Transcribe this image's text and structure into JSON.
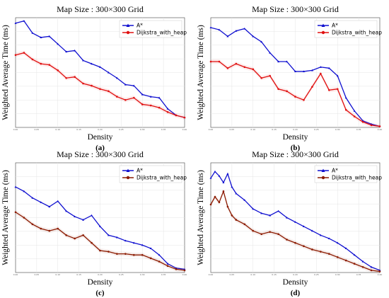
{
  "chart_data": [
    {
      "type": "line",
      "title": "Map Size : 300×300 Grid",
      "xlabel": "Density",
      "ylabel": "Weighted Average Time (ms)",
      "panel_label": "(a)",
      "xlim": [
        0,
        0.4
      ],
      "ylim": [
        0,
        1
      ],
      "grid": true,
      "legend_position": "top-right",
      "x_ticks": [
        "0.00",
        "0.05",
        "0.10",
        "0.15",
        "0.20",
        "0.25",
        "0.30",
        "0.35",
        "0.40"
      ],
      "y_ticks": [],
      "x": [
        0.0,
        0.02,
        0.04,
        0.06,
        0.08,
        0.1,
        0.12,
        0.14,
        0.16,
        0.18,
        0.2,
        0.22,
        0.24,
        0.26,
        0.28,
        0.3,
        0.32,
        0.34,
        0.36,
        0.38,
        0.4
      ],
      "series": [
        {
          "name": "A*",
          "color": "#1010d0",
          "marker": "triangle",
          "values": [
            0.95,
            0.97,
            0.86,
            0.82,
            0.83,
            0.76,
            0.69,
            0.7,
            0.61,
            0.58,
            0.55,
            0.5,
            0.45,
            0.39,
            0.38,
            0.3,
            0.28,
            0.27,
            0.17,
            0.11,
            0.09
          ]
        },
        {
          "name": "Dijkstra_with_heap",
          "color": "#e01010",
          "marker": "circle",
          "values": [
            0.66,
            0.68,
            0.62,
            0.58,
            0.57,
            0.52,
            0.45,
            0.46,
            0.4,
            0.38,
            0.35,
            0.33,
            0.28,
            0.25,
            0.27,
            0.21,
            0.2,
            0.18,
            0.14,
            0.11,
            0.09
          ]
        }
      ]
    },
    {
      "type": "line",
      "title": "Map Size : 300×300 Grid",
      "xlabel": "Density",
      "ylabel": "Weighted Average Time (ms)",
      "panel_label": "(b)",
      "xlim": [
        0,
        0.4
      ],
      "ylim": [
        0,
        1
      ],
      "grid": true,
      "legend_position": "top-right",
      "x_ticks": [
        "0.00",
        "0.05",
        "0.10",
        "0.15",
        "0.20",
        "0.25",
        "0.30",
        "0.35",
        "0.40"
      ],
      "y_ticks": [],
      "x": [
        0.0,
        0.02,
        0.04,
        0.06,
        0.08,
        0.1,
        0.12,
        0.14,
        0.16,
        0.18,
        0.2,
        0.22,
        0.24,
        0.26,
        0.28,
        0.3,
        0.32,
        0.34,
        0.36,
        0.38,
        0.4
      ],
      "series": [
        {
          "name": "A*",
          "color": "#1010d0",
          "marker": "triangle",
          "values": [
            0.91,
            0.89,
            0.83,
            0.88,
            0.9,
            0.83,
            0.78,
            0.68,
            0.6,
            0.6,
            0.51,
            0.51,
            0.52,
            0.55,
            0.54,
            0.47,
            0.27,
            0.15,
            0.06,
            0.03,
            0.01
          ]
        },
        {
          "name": "Dijkstra_with_heap",
          "color": "#e01010",
          "marker": "circle",
          "values": [
            0.6,
            0.6,
            0.54,
            0.58,
            0.55,
            0.53,
            0.45,
            0.47,
            0.35,
            0.33,
            0.28,
            0.25,
            0.37,
            0.49,
            0.34,
            0.35,
            0.16,
            0.1,
            0.05,
            0.02,
            0.01
          ]
        }
      ]
    },
    {
      "type": "line",
      "title": "Map Size : 300×300 Grid",
      "xlabel": "Density",
      "ylabel": "Weighted Average Time (ms)",
      "panel_label": "(c)",
      "xlim": [
        0,
        0.4
      ],
      "ylim": [
        0,
        1
      ],
      "grid": true,
      "legend_position": "top-right",
      "x_ticks": [
        "0.00",
        "0.05",
        "0.10",
        "0.15",
        "0.20",
        "0.25",
        "0.30",
        "0.35",
        "0.40"
      ],
      "y_ticks": [],
      "x": [
        0.0,
        0.02,
        0.04,
        0.06,
        0.08,
        0.1,
        0.12,
        0.14,
        0.16,
        0.18,
        0.2,
        0.22,
        0.24,
        0.26,
        0.28,
        0.3,
        0.32,
        0.34,
        0.36,
        0.38,
        0.4
      ],
      "series": [
        {
          "name": "A*",
          "color": "#1010d0",
          "marker": "triangle",
          "values": [
            0.78,
            0.74,
            0.68,
            0.64,
            0.6,
            0.65,
            0.56,
            0.51,
            0.48,
            0.52,
            0.42,
            0.34,
            0.32,
            0.29,
            0.27,
            0.25,
            0.22,
            0.16,
            0.08,
            0.04,
            0.03
          ]
        },
        {
          "name": "Dijkstra_with_heap",
          "color": "#8b1a00",
          "marker": "circle",
          "values": [
            0.55,
            0.5,
            0.44,
            0.4,
            0.38,
            0.4,
            0.34,
            0.31,
            0.34,
            0.27,
            0.2,
            0.19,
            0.17,
            0.17,
            0.16,
            0.16,
            0.13,
            0.1,
            0.06,
            0.03,
            0.02
          ]
        }
      ]
    },
    {
      "type": "line",
      "title": "Map Size : 300×300 Grid",
      "xlabel": "Density",
      "ylabel": "Weighted Average Time (ms)",
      "panel_label": "(d)",
      "xlim": [
        0,
        0.4
      ],
      "ylim": [
        0,
        1
      ],
      "grid": true,
      "legend_position": "top-right",
      "x_ticks": [
        "0.00",
        "0.05",
        "0.10",
        "0.15",
        "0.20",
        "0.25",
        "0.30",
        "0.35",
        "0.40"
      ],
      "y_ticks": [],
      "x": [
        0.0,
        0.01,
        0.02,
        0.03,
        0.04,
        0.05,
        0.06,
        0.08,
        0.1,
        0.12,
        0.14,
        0.16,
        0.18,
        0.2,
        0.22,
        0.24,
        0.26,
        0.28,
        0.3,
        0.32,
        0.34,
        0.36,
        0.38,
        0.4
      ],
      "series": [
        {
          "name": "A*",
          "color": "#1010d0",
          "marker": "triangle",
          "values": [
            0.86,
            0.92,
            0.88,
            0.82,
            0.9,
            0.78,
            0.72,
            0.66,
            0.58,
            0.54,
            0.52,
            0.56,
            0.5,
            0.46,
            0.42,
            0.38,
            0.34,
            0.31,
            0.27,
            0.22,
            0.16,
            0.1,
            0.05,
            0.02
          ]
        },
        {
          "name": "Dijkstra_with_heap",
          "color": "#8b1a00",
          "marker": "circle",
          "values": [
            0.62,
            0.69,
            0.64,
            0.74,
            0.6,
            0.52,
            0.48,
            0.44,
            0.38,
            0.35,
            0.37,
            0.35,
            0.3,
            0.27,
            0.24,
            0.21,
            0.19,
            0.17,
            0.14,
            0.11,
            0.08,
            0.05,
            0.02,
            0.01
          ]
        }
      ]
    }
  ]
}
